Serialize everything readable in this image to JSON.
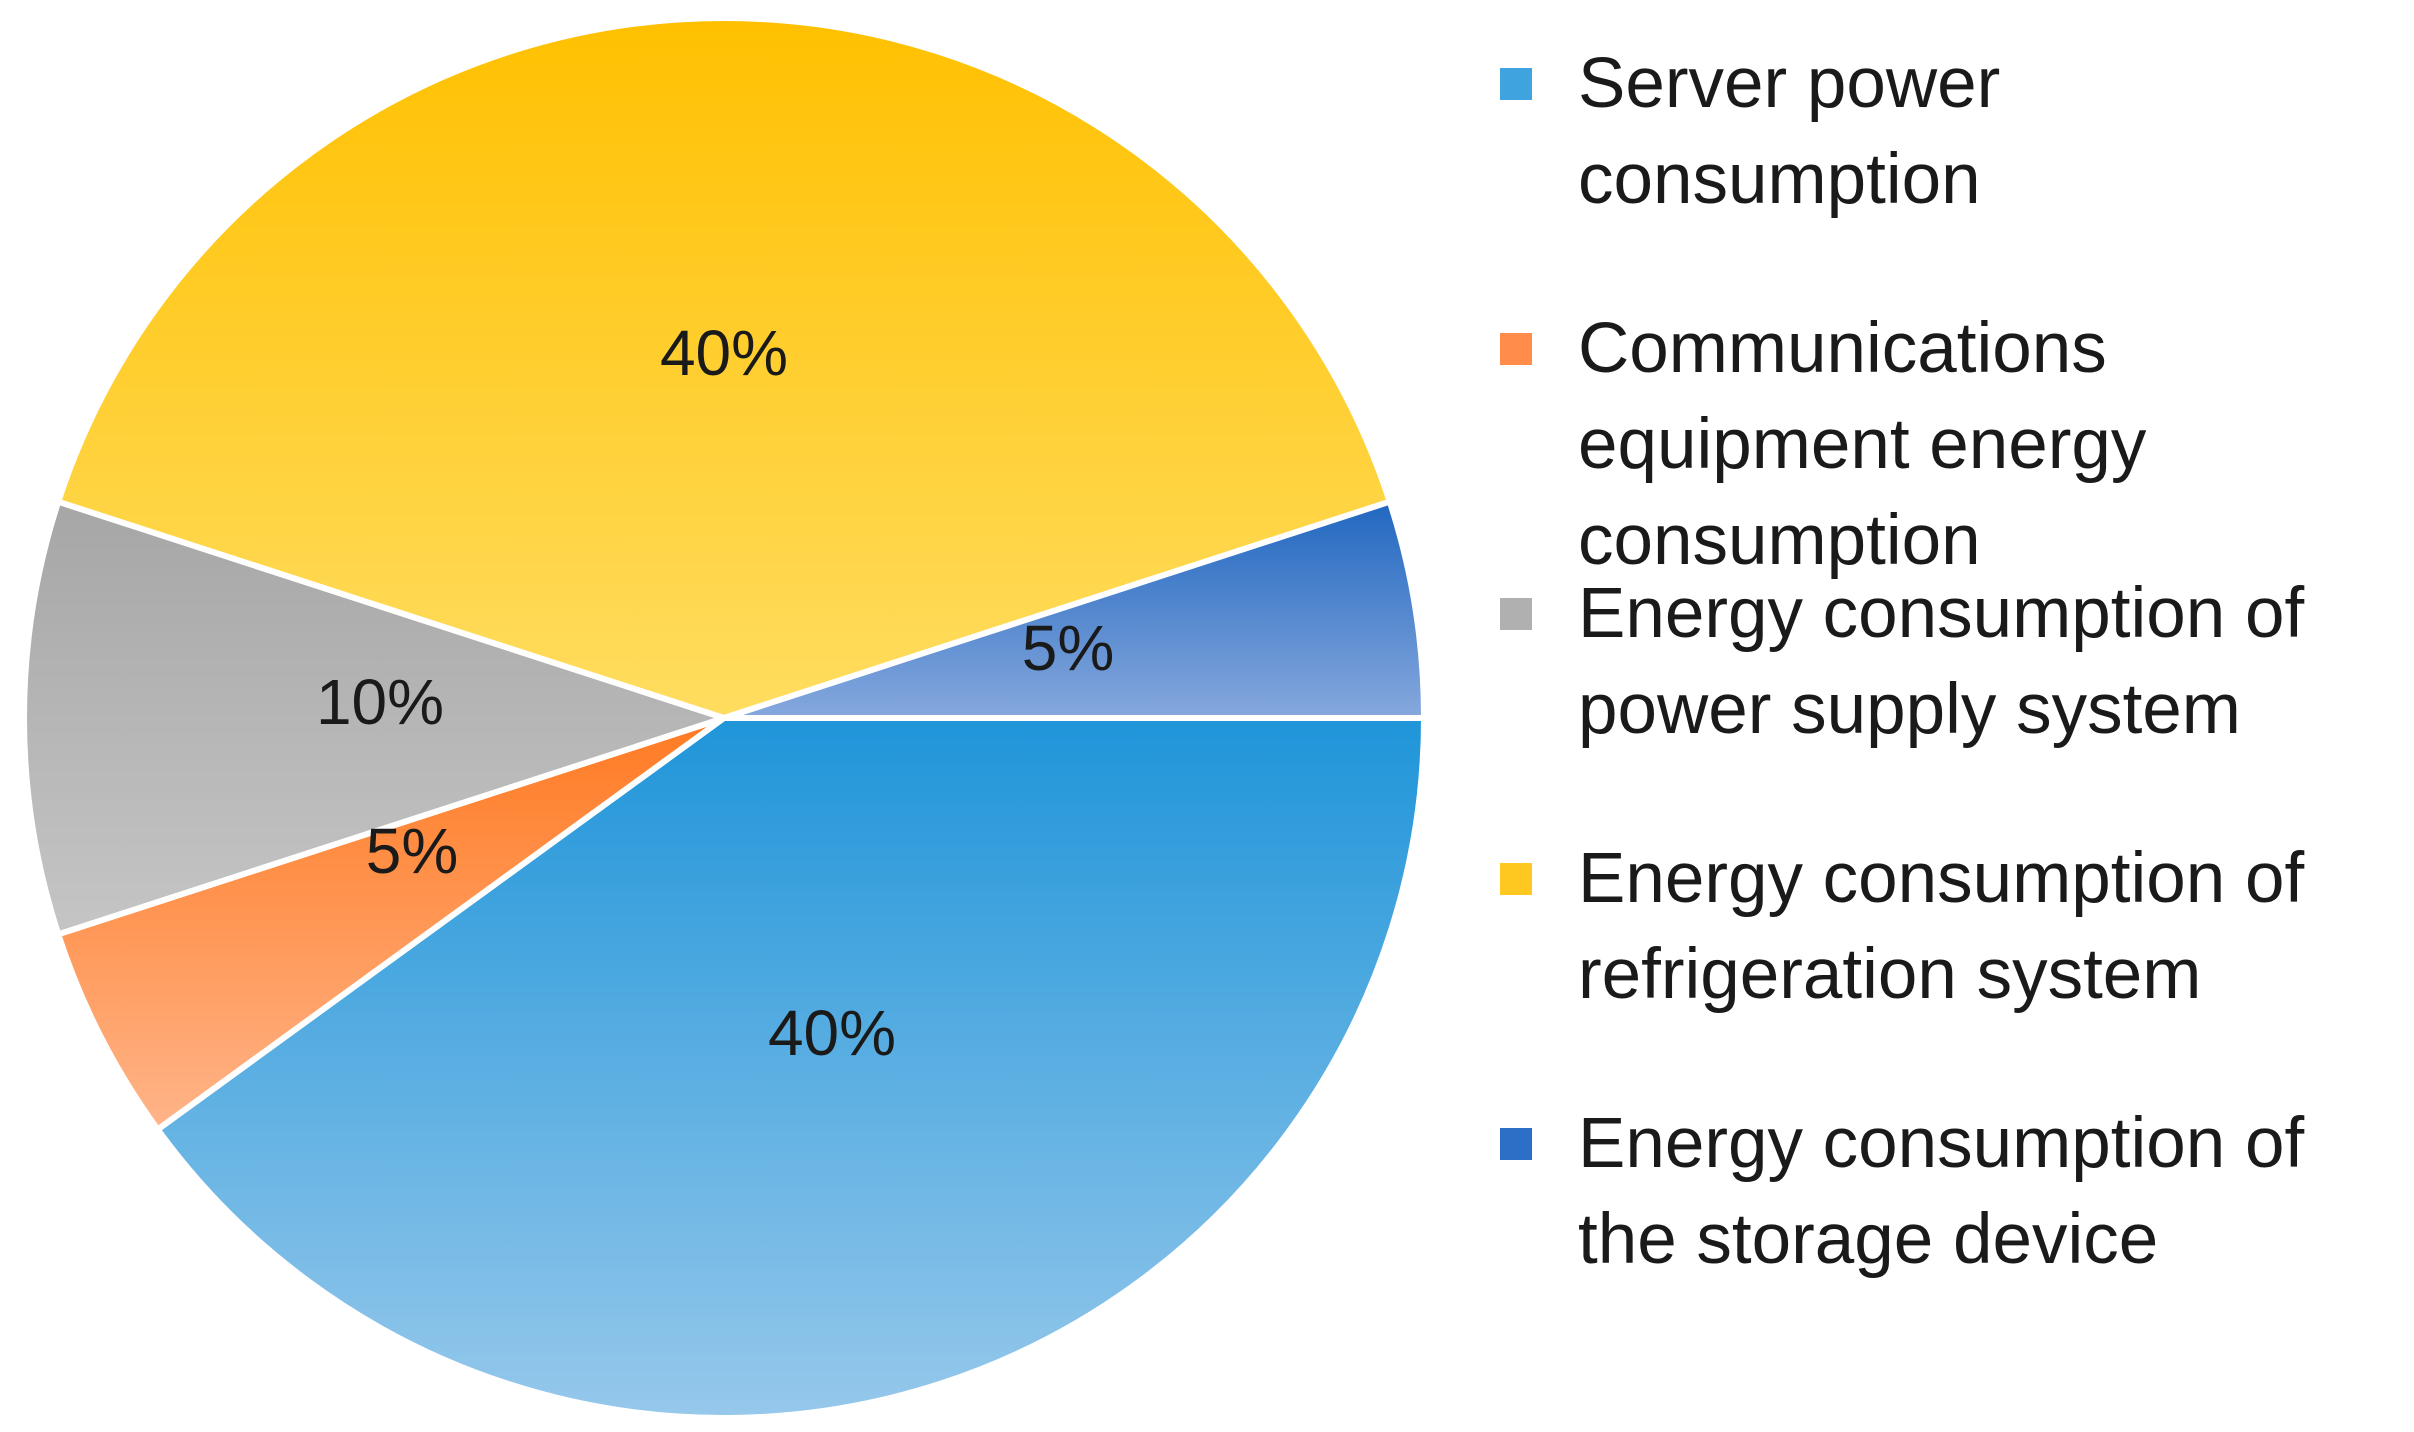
{
  "chart_data": {
    "type": "pie",
    "title": "",
    "slices": [
      {
        "label": "Server power consumption",
        "value": 40,
        "display": "40%",
        "color_top": "#1F95D9",
        "color_bottom": "#96C8EB"
      },
      {
        "label": "Communications equipment energy consumption",
        "value": 5,
        "display": "5%",
        "color_top": "#FF7A22",
        "color_bottom": "#FFB489"
      },
      {
        "label": "Energy consumption of power supply system",
        "value": 10,
        "display": "10%",
        "color_top": "#A6A6A6",
        "color_bottom": "#C5C5C5"
      },
      {
        "label": "Energy consumption of refrigeration system",
        "value": 40,
        "display": "40%",
        "color_top": "#FFC000",
        "color_bottom": "#FFDD60"
      },
      {
        "label": "Energy consumption of the storage device",
        "value": 5,
        "display": "5%",
        "color_top": "#2167C0",
        "color_bottom": "#86A8DD"
      }
    ],
    "legend_position": "right"
  },
  "legend": {
    "items": [
      {
        "label": "Server power consumption",
        "color": "#3FA3E0"
      },
      {
        "label": "Communications equipment energy consumption",
        "color": "#FF8C4A"
      },
      {
        "label": "Energy consumption of power supply system",
        "color": "#B0B0B0"
      },
      {
        "label": "Energy consumption of refrigeration system",
        "color": "#FFC820"
      },
      {
        "label": "Energy consumption of the storage device",
        "color": "#2C6FC6"
      }
    ]
  }
}
